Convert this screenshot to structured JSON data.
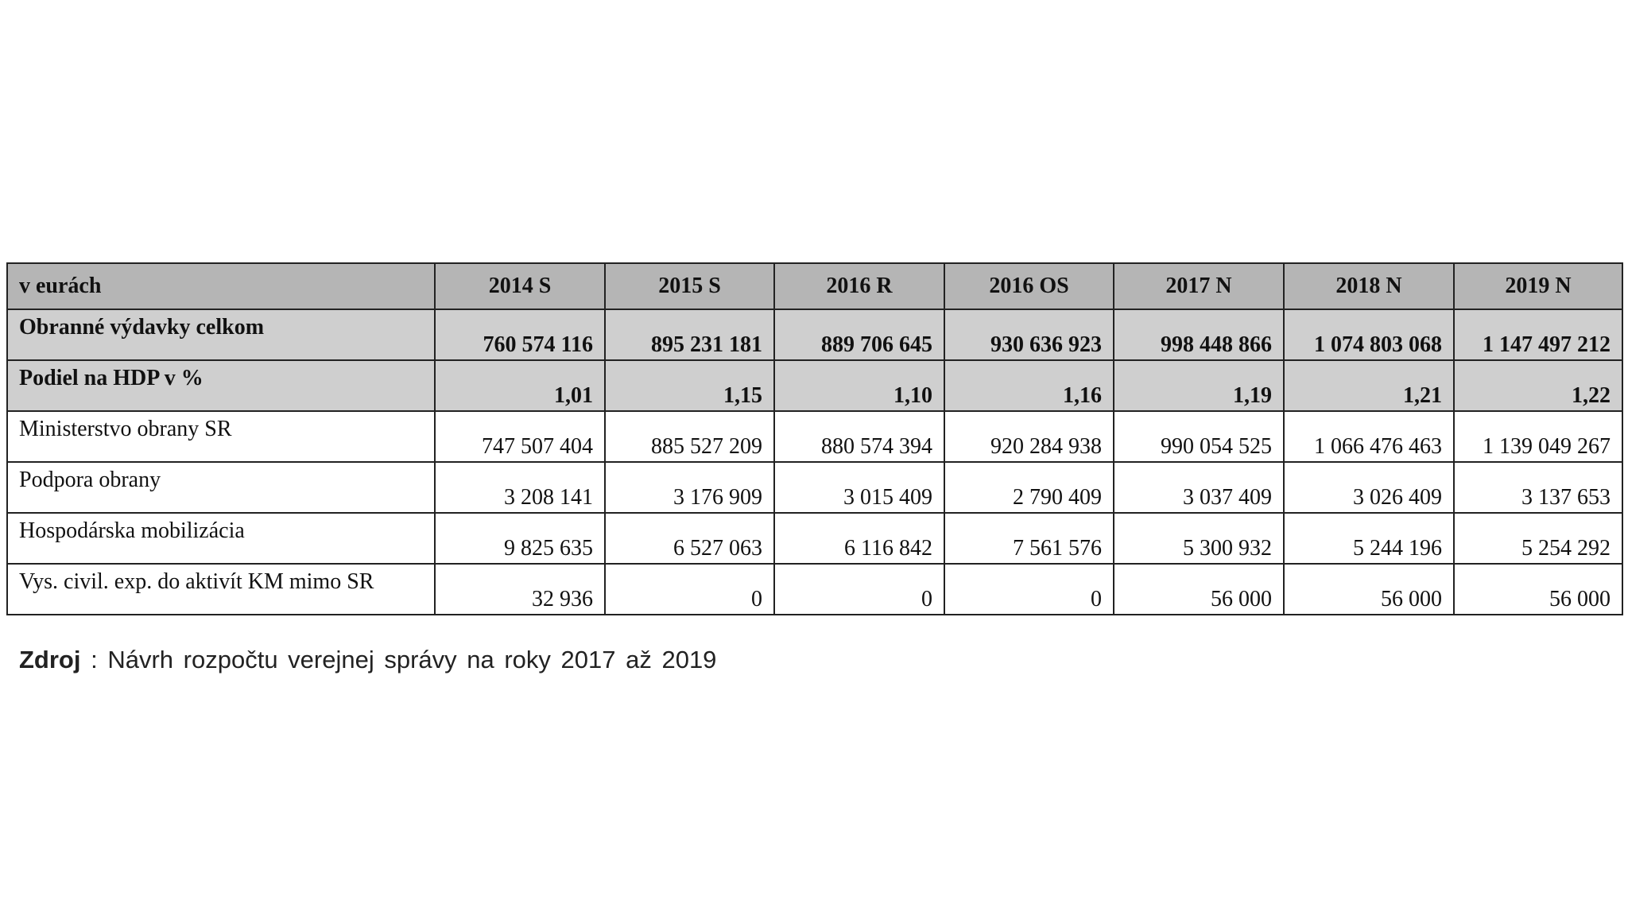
{
  "table": {
    "columns": [
      "v eurách",
      "2014 S",
      "2015 S",
      "2016 R",
      "2016 OS",
      "2017 N",
      "2018 N",
      "2019 N"
    ],
    "rows": [
      [
        "Obranné výdavky celkom",
        "760 574 116",
        "895 231 181",
        "889 706 645",
        "930 636 923",
        "998 448 866",
        "1 074 803 068",
        "1 147 497 212"
      ],
      [
        "Podiel na HDP v %",
        "1,01",
        "1,15",
        "1,10",
        "1,16",
        "1,19",
        "1,21",
        "1,22"
      ],
      [
        "Ministerstvo obrany SR",
        "747 507 404",
        "885 527 209",
        "880 574 394",
        "920 284 938",
        "990 054 525",
        "1 066 476 463",
        "1 139 049 267"
      ],
      [
        "Podpora obrany",
        "3 208 141",
        "3 176 909",
        "3 015 409",
        "2 790 409",
        "3 037 409",
        "3 026 409",
        "3 137 653"
      ],
      [
        "Hospodárska mobilizácia",
        "9 825 635",
        "6 527 063",
        "6 116 842",
        "7 561 576",
        "5 300 932",
        "5 244 196",
        "5 254 292"
      ],
      [
        "Vys. civil. exp. do aktivít KM mimo SR",
        "32 936",
        "0",
        "0",
        "0",
        "56 000",
        "56 000",
        "56 000"
      ]
    ]
  },
  "source": {
    "label": "Zdroj",
    "text": ": Návrh rozpočtu verejnej správy na roky 2017 až 2019"
  }
}
